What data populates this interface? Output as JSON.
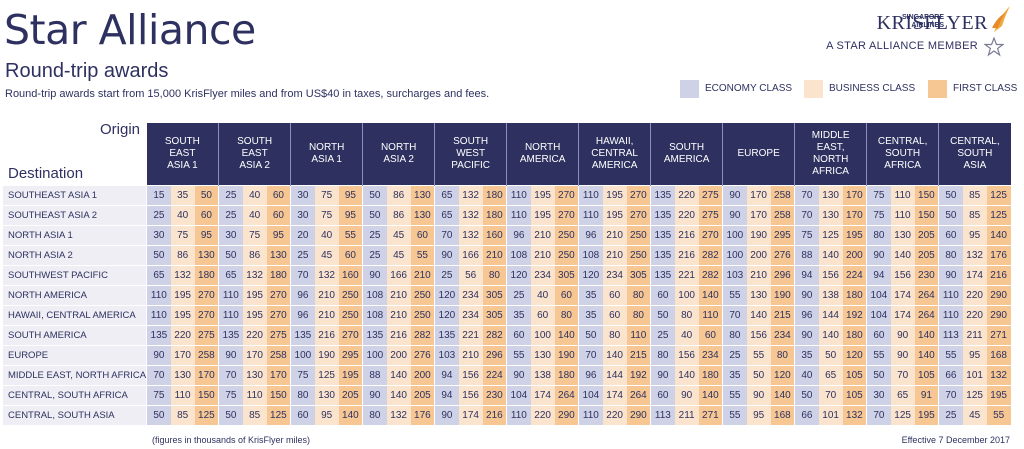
{
  "header": {
    "title": "Star Alliance",
    "subtitle": "Round-trip awards",
    "intro": "Round-trip awards start from 15,000 KrisFlyer miles and from US$40 in taxes, surcharges and fees."
  },
  "brand": {
    "airline_line1": "SINGAPORE",
    "airline_line2": "AIRLINES",
    "program": "KRISFLYER",
    "member": "A STAR ALLIANCE MEMBER"
  },
  "legend": [
    {
      "label": "ECONOMY CLASS",
      "color": "#cfd2e6"
    },
    {
      "label": "BUSINESS CLASS",
      "color": "#fbe4cd"
    },
    {
      "label": "FIRST CLASS",
      "color": "#f6c793"
    }
  ],
  "table": {
    "origin_label": "Origin",
    "destination_label": "Destination",
    "origins": [
      [
        "SOUTH",
        "EAST",
        "ASIA 1"
      ],
      [
        "SOUTH",
        "EAST",
        "ASIA 2"
      ],
      [
        "NORTH",
        "ASIA 1"
      ],
      [
        "NORTH",
        "ASIA 2"
      ],
      [
        "SOUTH",
        "WEST",
        "PACIFIC"
      ],
      [
        "NORTH",
        "AMERICA"
      ],
      [
        "HAWAII,",
        "CENTRAL",
        "AMERICA"
      ],
      [
        "SOUTH",
        "AMERICA"
      ],
      [
        "EUROPE"
      ],
      [
        "MIDDLE",
        "EAST,",
        "NORTH",
        "AFRICA"
      ],
      [
        "CENTRAL,",
        "SOUTH",
        "AFRICA"
      ],
      [
        "CENTRAL,",
        "SOUTH",
        "ASIA"
      ]
    ],
    "rows": [
      {
        "dest": "SOUTHEAST ASIA 1",
        "vals": [
          [
            15,
            35,
            50
          ],
          [
            25,
            40,
            60
          ],
          [
            30,
            75,
            95
          ],
          [
            50,
            86,
            130
          ],
          [
            65,
            132,
            180
          ],
          [
            110,
            195,
            270
          ],
          [
            110,
            195,
            270
          ],
          [
            135,
            220,
            275
          ],
          [
            90,
            170,
            258
          ],
          [
            70,
            130,
            170
          ],
          [
            75,
            110,
            150
          ],
          [
            50,
            85,
            125
          ]
        ]
      },
      {
        "dest": "SOUTHEAST ASIA 2",
        "vals": [
          [
            25,
            40,
            60
          ],
          [
            25,
            40,
            60
          ],
          [
            30,
            75,
            95
          ],
          [
            50,
            86,
            130
          ],
          [
            65,
            132,
            180
          ],
          [
            110,
            195,
            270
          ],
          [
            110,
            195,
            270
          ],
          [
            135,
            220,
            275
          ],
          [
            90,
            170,
            258
          ],
          [
            70,
            130,
            170
          ],
          [
            75,
            110,
            150
          ],
          [
            50,
            85,
            125
          ]
        ]
      },
      {
        "dest": "NORTH ASIA 1",
        "vals": [
          [
            30,
            75,
            95
          ],
          [
            30,
            75,
            95
          ],
          [
            20,
            40,
            55
          ],
          [
            25,
            45,
            60
          ],
          [
            70,
            132,
            160
          ],
          [
            96,
            210,
            250
          ],
          [
            96,
            210,
            250
          ],
          [
            135,
            216,
            270
          ],
          [
            100,
            190,
            295
          ],
          [
            75,
            125,
            195
          ],
          [
            80,
            130,
            205
          ],
          [
            60,
            95,
            140
          ]
        ]
      },
      {
        "dest": "NORTH ASIA 2",
        "vals": [
          [
            50,
            86,
            130
          ],
          [
            50,
            86,
            130
          ],
          [
            25,
            45,
            60
          ],
          [
            25,
            45,
            55
          ],
          [
            90,
            166,
            210
          ],
          [
            108,
            210,
            250
          ],
          [
            108,
            210,
            250
          ],
          [
            135,
            216,
            282
          ],
          [
            100,
            200,
            276
          ],
          [
            88,
            140,
            200
          ],
          [
            90,
            140,
            205
          ],
          [
            80,
            132,
            176
          ]
        ]
      },
      {
        "dest": "SOUTHWEST PACIFIC",
        "vals": [
          [
            65,
            132,
            180
          ],
          [
            65,
            132,
            180
          ],
          [
            70,
            132,
            160
          ],
          [
            90,
            166,
            210
          ],
          [
            25,
            56,
            80
          ],
          [
            120,
            234,
            305
          ],
          [
            120,
            234,
            305
          ],
          [
            135,
            221,
            282
          ],
          [
            103,
            210,
            296
          ],
          [
            94,
            156,
            224
          ],
          [
            94,
            156,
            230
          ],
          [
            90,
            174,
            216
          ]
        ]
      },
      {
        "dest": "NORTH AMERICA",
        "vals": [
          [
            110,
            195,
            270
          ],
          [
            110,
            195,
            270
          ],
          [
            96,
            210,
            250
          ],
          [
            108,
            210,
            250
          ],
          [
            120,
            234,
            305
          ],
          [
            25,
            40,
            60
          ],
          [
            35,
            60,
            80
          ],
          [
            60,
            100,
            140
          ],
          [
            55,
            130,
            190
          ],
          [
            90,
            138,
            180
          ],
          [
            104,
            174,
            264
          ],
          [
            110,
            220,
            290
          ]
        ]
      },
      {
        "dest": "HAWAII, CENTRAL AMERICA",
        "vals": [
          [
            110,
            195,
            270
          ],
          [
            110,
            195,
            270
          ],
          [
            96,
            210,
            250
          ],
          [
            108,
            210,
            250
          ],
          [
            120,
            234,
            305
          ],
          [
            35,
            60,
            80
          ],
          [
            35,
            60,
            80
          ],
          [
            50,
            80,
            110
          ],
          [
            70,
            140,
            215
          ],
          [
            96,
            144,
            192
          ],
          [
            104,
            174,
            264
          ],
          [
            110,
            220,
            290
          ]
        ]
      },
      {
        "dest": "SOUTH AMERICA",
        "vals": [
          [
            135,
            220,
            275
          ],
          [
            135,
            220,
            275
          ],
          [
            135,
            216,
            270
          ],
          [
            135,
            216,
            282
          ],
          [
            135,
            221,
            282
          ],
          [
            60,
            100,
            140
          ],
          [
            50,
            80,
            110
          ],
          [
            25,
            40,
            60
          ],
          [
            80,
            156,
            234
          ],
          [
            90,
            140,
            180
          ],
          [
            60,
            90,
            140
          ],
          [
            113,
            211,
            271
          ]
        ]
      },
      {
        "dest": "EUROPE",
        "vals": [
          [
            90,
            170,
            258
          ],
          [
            90,
            170,
            258
          ],
          [
            100,
            190,
            295
          ],
          [
            100,
            200,
            276
          ],
          [
            103,
            210,
            296
          ],
          [
            55,
            130,
            190
          ],
          [
            70,
            140,
            215
          ],
          [
            80,
            156,
            234
          ],
          [
            25,
            55,
            80
          ],
          [
            35,
            50,
            120
          ],
          [
            55,
            90,
            140
          ],
          [
            55,
            95,
            168
          ]
        ]
      },
      {
        "dest": "MIDDLE EAST, NORTH AFRICA",
        "vals": [
          [
            70,
            130,
            170
          ],
          [
            70,
            130,
            170
          ],
          [
            75,
            125,
            195
          ],
          [
            88,
            140,
            200
          ],
          [
            94,
            156,
            224
          ],
          [
            90,
            138,
            180
          ],
          [
            96,
            144,
            192
          ],
          [
            90,
            140,
            180
          ],
          [
            35,
            50,
            120
          ],
          [
            40,
            65,
            105
          ],
          [
            50,
            70,
            105
          ],
          [
            66,
            101,
            132
          ]
        ]
      },
      {
        "dest": "CENTRAL, SOUTH AFRICA",
        "vals": [
          [
            75,
            110,
            150
          ],
          [
            75,
            110,
            150
          ],
          [
            80,
            130,
            205
          ],
          [
            90,
            140,
            205
          ],
          [
            94,
            156,
            230
          ],
          [
            104,
            174,
            264
          ],
          [
            104,
            174,
            264
          ],
          [
            60,
            90,
            140
          ],
          [
            55,
            90,
            140
          ],
          [
            50,
            70,
            105
          ],
          [
            30,
            65,
            91
          ],
          [
            70,
            125,
            195
          ]
        ]
      },
      {
        "dest": "CENTRAL, SOUTH ASIA",
        "vals": [
          [
            50,
            85,
            125
          ],
          [
            50,
            85,
            125
          ],
          [
            60,
            95,
            140
          ],
          [
            80,
            132,
            176
          ],
          [
            90,
            174,
            216
          ],
          [
            110,
            220,
            290
          ],
          [
            110,
            220,
            290
          ],
          [
            113,
            211,
            271
          ],
          [
            55,
            95,
            168
          ],
          [
            66,
            101,
            132
          ],
          [
            70,
            125,
            195
          ],
          [
            25,
            45,
            55
          ]
        ]
      }
    ]
  },
  "footer": {
    "note": "(figures in thousands of KrisFlyer miles)",
    "effective": "Effective 7 December 2017"
  }
}
